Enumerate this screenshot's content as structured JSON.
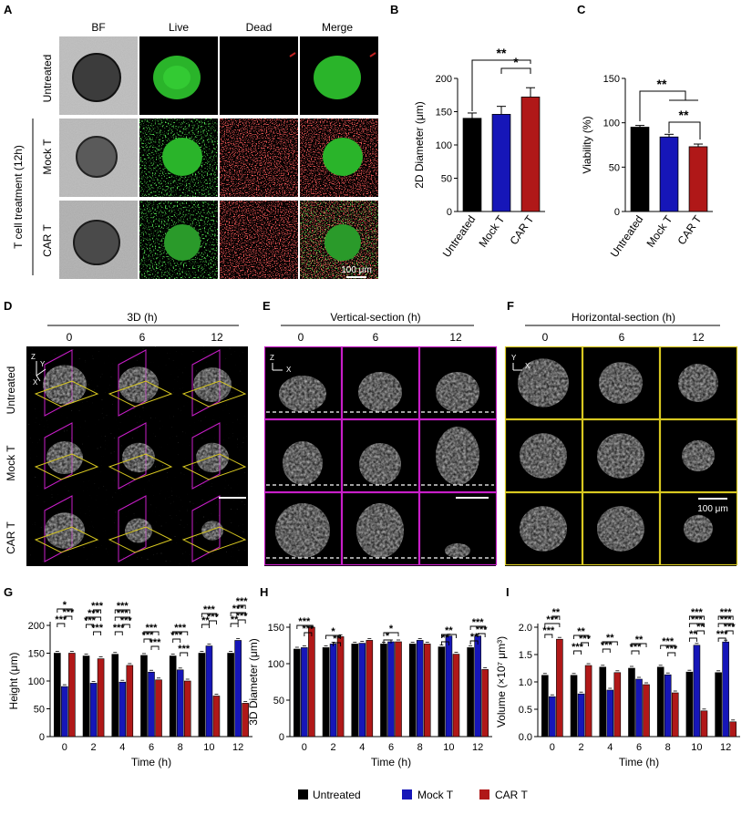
{
  "panel_letters": {
    "A": "A",
    "B": "B",
    "C": "C",
    "D": "D",
    "E": "E",
    "F": "F",
    "G": "G",
    "H": "H",
    "I": "I"
  },
  "colors": {
    "untreated": "#000000",
    "mock": "#1616b8",
    "car": "#b01818",
    "live": "#2ad42a",
    "dead": "#e02a2a",
    "purple": "#c81ec8",
    "yellow": "#d8c820"
  },
  "panel_a": {
    "columns": [
      "BF",
      "Live",
      "Dead",
      "Merge"
    ],
    "rows": [
      "Untreated",
      "Mock T",
      "CAR T"
    ],
    "group_label": "T cell treatment (12h)",
    "scale_bar": "100 μm"
  },
  "panel_d": {
    "header": "3D (h)",
    "times": [
      "0",
      "6",
      "12"
    ],
    "rows": [
      "Untreated",
      "Mock T",
      "CAR T"
    ],
    "axes": [
      "Z",
      "Y",
      "X"
    ]
  },
  "panel_e": {
    "header": "Vertical-section (h)",
    "times": [
      "0",
      "6",
      "12"
    ],
    "axes": [
      "Z",
      "X"
    ]
  },
  "panel_f": {
    "header": "Horizontal-section (h)",
    "times": [
      "0",
      "6",
      "12"
    ],
    "axes": [
      "Y",
      "X"
    ],
    "scale_bar": "100 μm"
  },
  "legend": [
    "Untreated",
    "Mock T",
    "CAR T"
  ],
  "chart_data": [
    {
      "id": "B",
      "type": "bar",
      "categories": [
        "Untreated",
        "Mock T",
        "CAR T"
      ],
      "values": [
        140,
        146,
        172
      ],
      "errors": [
        8,
        12,
        14
      ],
      "ylabel": "2D Diameter (μm)",
      "ylim": [
        0,
        200
      ],
      "yticks": [
        0,
        50,
        100,
        150,
        200
      ],
      "significance": [
        {
          "pair": [
            0,
            2
          ],
          "label": "**"
        },
        {
          "pair": [
            1,
            2
          ],
          "label": "*"
        }
      ]
    },
    {
      "id": "C",
      "type": "bar",
      "categories": [
        "Untreated",
        "Mock T",
        "CAR T"
      ],
      "values": [
        95,
        84,
        73
      ],
      "errors": [
        2,
        3,
        3
      ],
      "ylabel": "Viability (%)",
      "ylim": [
        0,
        150
      ],
      "yticks": [
        0,
        50,
        100,
        150
      ],
      "significance": [
        {
          "pair": [
            0,
            "1-2"
          ],
          "label": "**"
        },
        {
          "pair": [
            1,
            2
          ],
          "label": "**"
        }
      ]
    },
    {
      "id": "G",
      "type": "bar",
      "x": [
        "0",
        "2",
        "4",
        "6",
        "8",
        "10",
        "12"
      ],
      "xlabel": "Time (h)",
      "ylabel": "Height (μm)",
      "ylim": [
        0,
        200
      ],
      "yticks": [
        0,
        50,
        100,
        150,
        200
      ],
      "series": [
        {
          "name": "Untreated",
          "values": [
            150,
            145,
            148,
            146,
            145,
            150,
            150
          ]
        },
        {
          "name": "Mock T",
          "values": [
            90,
            96,
            98,
            116,
            120,
            163,
            173
          ]
        },
        {
          "name": "CAR T",
          "values": [
            150,
            140,
            128,
            102,
            100,
            73,
            60
          ]
        }
      ],
      "significance": [
        "***",
        "***",
        "*",
        "***",
        "***",
        "***",
        "***",
        "***",
        "***",
        "***",
        "***",
        "***",
        "***",
        "***",
        "***",
        "***",
        "***",
        "**",
        "***",
        "***",
        "**",
        "***",
        "***",
        "***",
        "***",
        "***",
        "***"
      ]
    },
    {
      "id": "H",
      "type": "bar",
      "x": [
        "0",
        "2",
        "4",
        "6",
        "8",
        "10",
        "12"
      ],
      "xlabel": "Time (h)",
      "ylabel": "3D Diameter (μm)",
      "ylim": [
        0,
        150
      ],
      "yticks": [
        0,
        50,
        100,
        150
      ],
      "series": [
        {
          "name": "Untreated",
          "values": [
            120,
            122,
            127,
            127,
            127,
            123,
            122
          ]
        },
        {
          "name": "Mock T",
          "values": [
            122,
            127,
            128,
            130,
            132,
            138,
            138
          ]
        },
        {
          "name": "CAR T",
          "values": [
            150,
            137,
            132,
            130,
            127,
            113,
            92
          ]
        }
      ],
      "significance": [
        "***",
        "***",
        "**",
        "*",
        "*",
        "*",
        "**",
        "**",
        "**",
        "***",
        "***"
      ]
    },
    {
      "id": "I",
      "type": "bar",
      "x": [
        "0",
        "2",
        "4",
        "6",
        "8",
        "10",
        "12"
      ],
      "xlabel": "Time (h)",
      "ylabel": "Volume (×10⁷ μm³)",
      "ylim": [
        0,
        2.0
      ],
      "yticks": [
        "0.0",
        "0.5",
        "1.0",
        "1.5",
        "2.0"
      ],
      "series": [
        {
          "name": "Untreated",
          "values": [
            1.12,
            1.12,
            1.27,
            1.25,
            1.27,
            1.18,
            1.17
          ]
        },
        {
          "name": "Mock T",
          "values": [
            0.73,
            0.78,
            0.85,
            1.05,
            1.13,
            1.67,
            1.73
          ]
        },
        {
          "name": "CAR T",
          "values": [
            1.78,
            1.3,
            1.17,
            0.95,
            0.8,
            0.47,
            0.27
          ]
        }
      ],
      "significance": [
        "***",
        "***",
        "**",
        "***",
        "***",
        "**",
        "***",
        "**",
        "***",
        "**",
        "***",
        "***",
        "**",
        "**",
        "***",
        "***",
        "***",
        "***",
        "***",
        "***",
        "***"
      ]
    }
  ]
}
